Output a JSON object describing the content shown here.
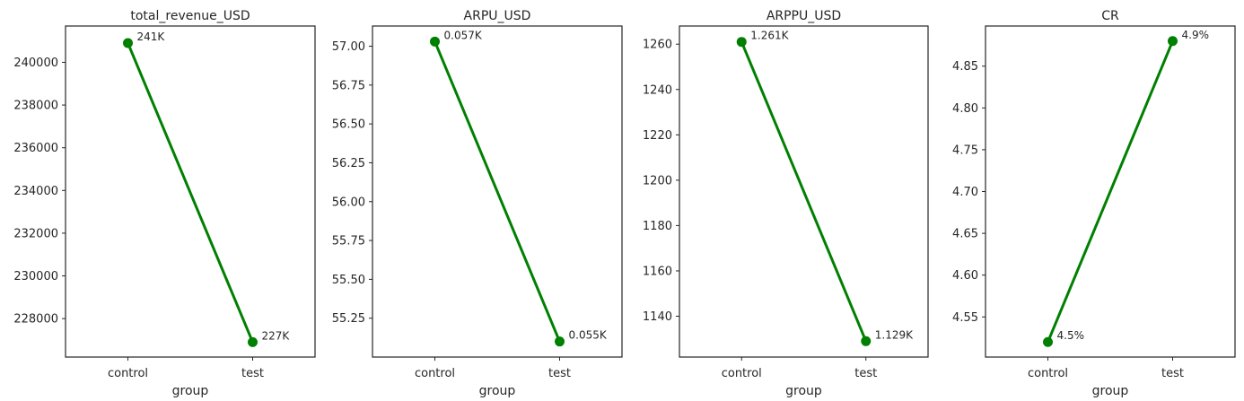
{
  "chart_data": [
    {
      "type": "line",
      "title": "total_revenue_USD",
      "xlabel": "group",
      "ylabel": "",
      "categories": [
        "control",
        "test"
      ],
      "values": [
        240900,
        226900
      ],
      "data_labels": [
        "241K",
        "227K"
      ],
      "yticks": [
        228000,
        230000,
        232000,
        234000,
        236000,
        238000,
        240000
      ],
      "ylim": [
        226200,
        241700
      ],
      "line_color": "#008000",
      "grid": false
    },
    {
      "type": "line",
      "title": "ARPU_USD",
      "xlabel": "group",
      "ylabel": "",
      "categories": [
        "control",
        "test"
      ],
      "values": [
        57.03,
        55.1
      ],
      "data_labels": [
        "0.057K",
        "0.055K"
      ],
      "yticks": [
        55.25,
        55.5,
        55.75,
        56.0,
        56.25,
        56.5,
        56.75,
        57.0
      ],
      "ylim": [
        55.0,
        57.13
      ],
      "line_color": "#008000",
      "grid": false
    },
    {
      "type": "line",
      "title": "ARPPU_USD",
      "xlabel": "group",
      "ylabel": "",
      "categories": [
        "control",
        "test"
      ],
      "values": [
        1261,
        1129
      ],
      "data_labels": [
        "1.261K",
        "1.129K"
      ],
      "yticks": [
        1140,
        1160,
        1180,
        1200,
        1220,
        1240,
        1260
      ],
      "ylim": [
        1122,
        1268
      ],
      "line_color": "#008000",
      "grid": false
    },
    {
      "type": "line",
      "title": "CR",
      "xlabel": "group",
      "ylabel": "",
      "categories": [
        "control",
        "test"
      ],
      "values": [
        4.52,
        4.88
      ],
      "data_labels": [
        "4.5%",
        "4.9%"
      ],
      "yticks": [
        4.55,
        4.6,
        4.65,
        4.7,
        4.75,
        4.8,
        4.85
      ],
      "ylim": [
        4.502,
        4.898
      ],
      "line_color": "#008000",
      "grid": false
    }
  ]
}
